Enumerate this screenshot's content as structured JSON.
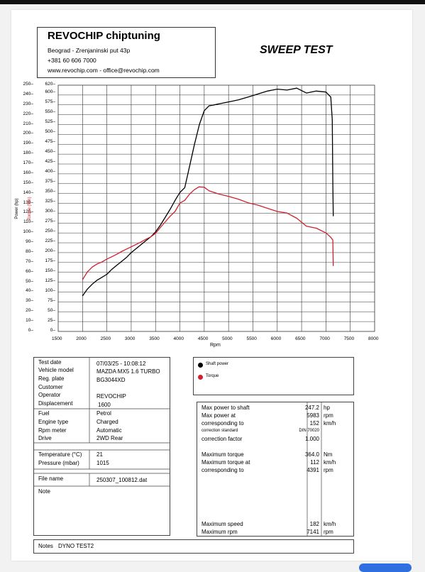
{
  "header": {
    "company": "REVOCHIP chiptuning",
    "address": "Beograd - Zrenjaninski put 43p",
    "phone": "+381 60 606 7000",
    "web": "www.revochip.com - office@revochip.com",
    "test_title": "SWEEP TEST"
  },
  "chart_data": {
    "type": "line",
    "x_label": "Rpm",
    "y_left_label": "Power (hp)",
    "y_right_label": "Torque (Nm)",
    "x_ticks": [
      "1500",
      "2000",
      "2500",
      "3000",
      "3500",
      "4000",
      "4500",
      "5000",
      "5500",
      "6000",
      "6500",
      "7000",
      "7500",
      "8000"
    ],
    "y_power_ticks": [
      "250",
      "240",
      "230",
      "220",
      "210",
      "200",
      "190",
      "180",
      "170",
      "160",
      "150",
      "140",
      "130",
      "120",
      "110",
      "100",
      "90",
      "80",
      "70",
      "60",
      "50",
      "40",
      "30",
      "20",
      "10",
      "0"
    ],
    "y_torque_ticks": [
      "620",
      "600",
      "575",
      "550",
      "525",
      "500",
      "475",
      "450",
      "425",
      "400",
      "375",
      "350",
      "325",
      "300",
      "275",
      "250",
      "225",
      "200",
      "175",
      "150",
      "125",
      "100",
      "75",
      "50",
      "25",
      "0"
    ],
    "xlim": [
      1500,
      8000
    ],
    "ylim_power": [
      0,
      250
    ],
    "ylim_torque": [
      0,
      620
    ],
    "grid": true,
    "series": [
      {
        "name": "Shaft power",
        "axis": "power",
        "color": "#000000",
        "x": [
          2000,
          2100,
          2200,
          2300,
          2400,
          2500,
          2600,
          2700,
          2800,
          2900,
          3000,
          3100,
          3200,
          3300,
          3400,
          3500,
          3600,
          3700,
          3800,
          3900,
          4000,
          4100,
          4200,
          4300,
          4400,
          4500,
          4600,
          4700,
          4800,
          4900,
          5000,
          5200,
          5400,
          5600,
          5800,
          6000,
          6200,
          6400,
          6600,
          6800,
          7000,
          7100,
          7130,
          7141,
          7150
        ],
        "y": [
          36,
          43,
          48,
          52,
          55,
          58,
          63,
          67,
          71,
          75,
          80,
          84,
          88,
          92,
          96,
          101,
          108,
          116,
          124,
          133,
          141,
          146,
          168,
          190,
          210,
          224,
          229,
          230,
          231,
          232,
          233,
          235,
          238,
          241,
          244,
          246,
          245,
          247,
          242,
          244,
          243,
          238,
          215,
          150,
          117
        ]
      },
      {
        "name": "Torque",
        "axis": "torque",
        "color": "#d0202e",
        "x": [
          2000,
          2100,
          2200,
          2300,
          2400,
          2500,
          2600,
          2700,
          2800,
          2900,
          3000,
          3100,
          3200,
          3300,
          3400,
          3500,
          3600,
          3700,
          3800,
          3900,
          4000,
          4100,
          4200,
          4300,
          4391,
          4500,
          4600,
          4800,
          5000,
          5200,
          5400,
          5600,
          5800,
          6000,
          6200,
          6400,
          6600,
          6800,
          7000,
          7100,
          7141,
          7150
        ],
        "y": [
          130,
          150,
          162,
          170,
          175,
          182,
          188,
          194,
          201,
          207,
          213,
          219,
          225,
          232,
          238,
          247,
          262,
          276,
          290,
          302,
          323,
          330,
          346,
          357,
          364,
          363,
          354,
          346,
          340,
          333,
          324,
          318,
          310,
          302,
          298,
          285,
          265,
          260,
          248,
          237,
          230,
          165
        ]
      }
    ]
  },
  "info": {
    "test_date_label": "Test date",
    "test_date": "07/03/25 - 10:08:12",
    "vehicle_model_label": "Vehicle model",
    "vehicle_model": "MAZDA MX5 1.6 TURBO",
    "reg_plate_label": "Reg. plate",
    "reg_plate": "BG3044XD",
    "customer_label": "Customer",
    "customer": "",
    "operator_label": "Operator",
    "operator": "REVOCHIP",
    "displacement_label": "Displacement",
    "displacement": "1600",
    "fuel_label": "Fuel",
    "fuel": "Petrol",
    "engine_type_label": "Engine type",
    "engine_type": "Charged",
    "rpm_meter_label": "Rpm meter",
    "rpm_meter": "Automatic",
    "drive_label": "Drive",
    "drive": "2WD Rear",
    "temperature_label": "Temperature (°C)",
    "temperature": "21",
    "pressure_label": "Pressure (mbar)",
    "pressure": "1015",
    "file_name_label": "File name",
    "file_name": "250307_100812.dat",
    "note_label": "Note"
  },
  "legend": {
    "shaft_power": "Shaft power",
    "torque": "Torque"
  },
  "results": {
    "max_power_label": "Max power to shaft",
    "max_power": "247.2",
    "max_power_unit": "hp",
    "max_power_at_label": "Max power at",
    "max_power_rpm": "5983",
    "max_power_rpm_unit": "rpm",
    "corr1_label": "corresponding to",
    "corr1_speed": "152",
    "corr1_unit": "km/h",
    "correction_standard_label": "correction standard",
    "correction_standard": "DIN 70020",
    "correction_factor_label": "correction factor",
    "correction_factor": "1.000",
    "max_torque_label": "Maximum torque",
    "max_torque": "364.0",
    "max_torque_unit": "Nm",
    "max_torque_at_label": "Maximum torque at",
    "max_torque_speed": "112",
    "max_torque_speed_unit": "km/h",
    "corr2_label": "corresponding to",
    "corr2_rpm": "4391",
    "corr2_unit": "rpm",
    "max_speed_label": "Maximum speed",
    "max_speed": "182",
    "max_speed_unit": "km/h",
    "max_rpm_label": "Maximum rpm",
    "max_rpm": "7141",
    "max_rpm_unit": "rpm"
  },
  "notes": {
    "label": "Notes",
    "value": "DYNO TEST2"
  }
}
